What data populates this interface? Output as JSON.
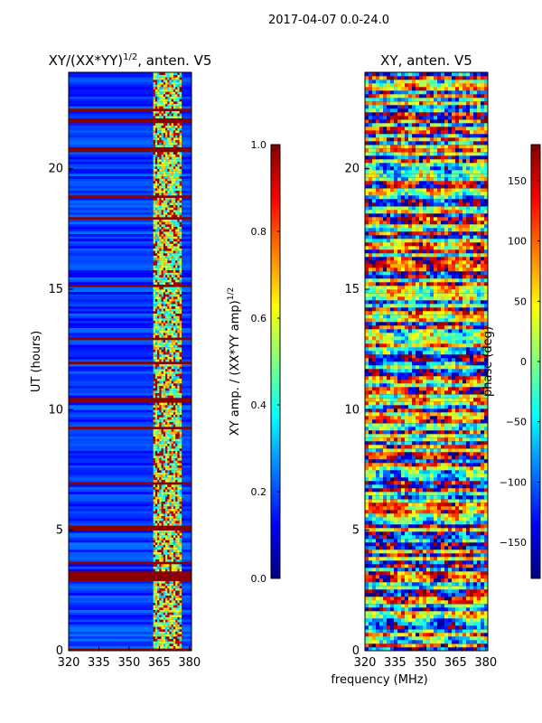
{
  "figure_title": "2017-04-07 0.0-24.0",
  "xlabel": "frequency (MHz)",
  "colors": {
    "jet": [
      "#00007f",
      "#0000ff",
      "#007fff",
      "#00ffff",
      "#7fff7f",
      "#ffff00",
      "#ff7f00",
      "#ff0000",
      "#7f0000"
    ]
  },
  "chart_data": [
    {
      "type": "heatmap",
      "id": "amp",
      "title_main": "XY/(XX*YY)",
      "title_exp": "1/2",
      "title_tail": ", anten. V5",
      "xlabel": "",
      "ylabel": "UT (hours)",
      "xlim": [
        320,
        381
      ],
      "ylim": [
        0,
        24
      ],
      "xticks": [
        320,
        335,
        350,
        365,
        380
      ],
      "yticks": [
        0,
        5,
        10,
        15,
        20
      ],
      "colorbar": {
        "label_main": "XY amp. / (XX*YY amp)",
        "label_exp": "1/2",
        "range": [
          0.0,
          1.0
        ],
        "ticks": [
          "0.0",
          "0.2",
          "0.4",
          "0.6",
          "0.8",
          "1.0"
        ]
      },
      "noisy_band_mhz": [
        362,
        376
      ],
      "saturated_time_ranges_h": [
        [
          0.0,
          0.1
        ],
        [
          2.9,
          3.3
        ],
        [
          3.6,
          3.7
        ],
        [
          5.0,
          5.2
        ],
        [
          6.95,
          7.05
        ],
        [
          9.2,
          9.3
        ],
        [
          10.3,
          10.5
        ],
        [
          11.9,
          12.0
        ],
        [
          12.9,
          13.0
        ],
        [
          15.1,
          15.2
        ],
        [
          17.9,
          18.0
        ],
        [
          18.8,
          18.9
        ],
        [
          20.7,
          20.9
        ],
        [
          21.9,
          22.1
        ],
        [
          22.4,
          22.5
        ]
      ]
    },
    {
      "type": "heatmap",
      "id": "phase",
      "title_main": "XY, anten. V5",
      "xlabel": "",
      "ylabel": "",
      "xlim": [
        320,
        381
      ],
      "ylim": [
        0,
        24
      ],
      "xticks": [
        320,
        335,
        350,
        365,
        380
      ],
      "yticks": [
        0,
        5,
        10,
        15,
        20
      ],
      "colorbar": {
        "label_main": "phase (deg)",
        "range": [
          -180,
          180
        ],
        "ticks": [
          "−150",
          "−100",
          "−50",
          "0",
          "50",
          "100",
          "150"
        ],
        "tick_values": [
          -150,
          -100,
          -50,
          0,
          50,
          100,
          150
        ]
      }
    }
  ]
}
